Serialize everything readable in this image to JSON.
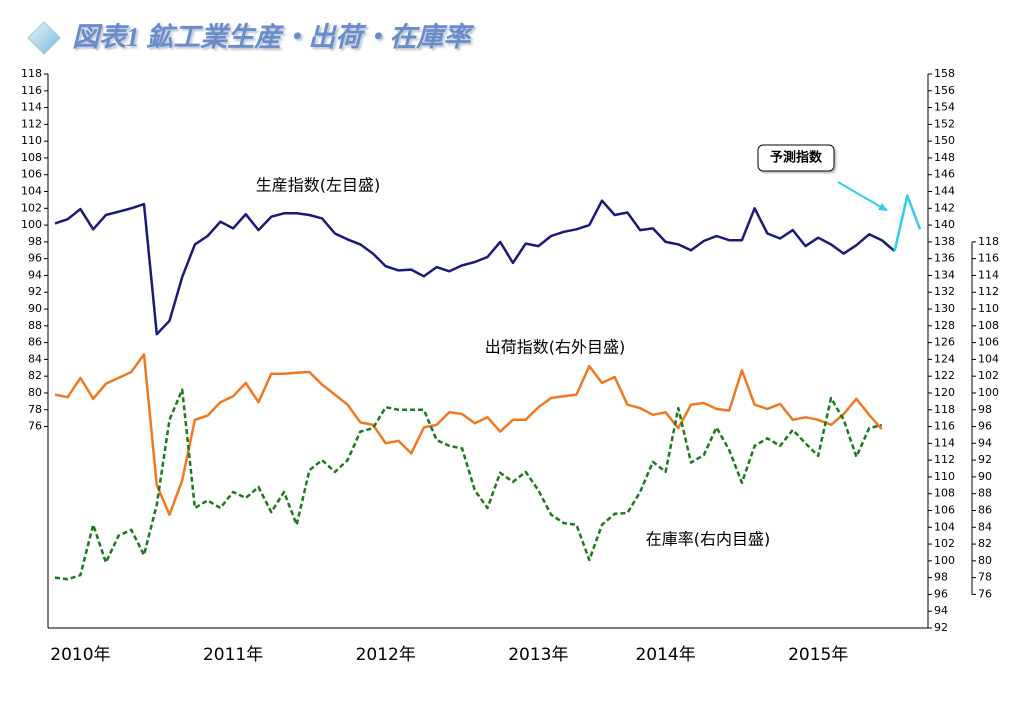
{
  "chart_data": {
    "type": "line",
    "title": "図表1 鉱工業生産・出荷・在庫率",
    "categories": [
      null,
      null,
      "2010年",
      null,
      null,
      null,
      null,
      null,
      null,
      null,
      null,
      null,
      null,
      null,
      "2011年",
      null,
      null,
      null,
      null,
      null,
      null,
      null,
      null,
      null,
      null,
      null,
      "2012年",
      null,
      null,
      null,
      null,
      null,
      null,
      null,
      null,
      null,
      null,
      null,
      "2013年",
      null,
      null,
      null,
      null,
      null,
      null,
      null,
      null,
      null,
      "2014年",
      null,
      null,
      null,
      null,
      null,
      null,
      null,
      null,
      null,
      null,
      null,
      "2015年",
      null,
      null,
      null,
      null,
      null,
      null,
      null,
      null
    ],
    "ylim": [
      52,
      118
    ],
    "yticks": [
      76,
      78,
      80,
      82,
      84,
      86,
      88,
      90,
      92,
      94,
      96,
      98,
      100,
      102,
      104,
      106,
      108,
      110,
      112,
      114,
      116,
      118
    ],
    "y2lim": [
      92,
      158
    ],
    "y2ticks": [
      92,
      94,
      96,
      98,
      100,
      102,
      104,
      106,
      108,
      110,
      112,
      114,
      116,
      118,
      120,
      122,
      124,
      126,
      128,
      130,
      132,
      134,
      136,
      138,
      140,
      142,
      144,
      146,
      148,
      150,
      152,
      154,
      156,
      158
    ],
    "y3lim": [
      72,
      138
    ],
    "y3ticks": [
      76,
      78,
      80,
      82,
      84,
      86,
      88,
      90,
      92,
      94,
      96,
      98,
      100,
      102,
      104,
      106,
      108,
      110,
      112,
      114,
      116,
      118
    ],
    "series": [
      {
        "name": "生産指数(左目盛)",
        "color": "#1a1a78",
        "axis": "y",
        "values": [
          100.2,
          100.7,
          101.9,
          99.5,
          101.2,
          101.6,
          102,
          102.5,
          87,
          88.6,
          93.8,
          97.7,
          98.7,
          100.4,
          99.6,
          101.3,
          99.4,
          101,
          101.4,
          101.4,
          101.2,
          100.8,
          99,
          98.3,
          97.7,
          96.6,
          95.1,
          94.6,
          94.7,
          93.9,
          95,
          94.5,
          95.2,
          95.6,
          96.2,
          98,
          95.5,
          97.8,
          97.5,
          98.7,
          99.2,
          99.5,
          100,
          102.9,
          101.2,
          101.5,
          99.4,
          99.6,
          98,
          97.7,
          97,
          98.1,
          98.7,
          98.2,
          98.2,
          102,
          99,
          98.4,
          99.4,
          97.5,
          98.5,
          97.7,
          96.6,
          97.6,
          98.9,
          98.2,
          96.9,
          null,
          null
        ]
      },
      {
        "name": "予測指数",
        "color": "#33ccee",
        "axis": "y",
        "values": [
          null,
          null,
          null,
          null,
          null,
          null,
          null,
          null,
          null,
          null,
          null,
          null,
          null,
          null,
          null,
          null,
          null,
          null,
          null,
          null,
          null,
          null,
          null,
          null,
          null,
          null,
          null,
          null,
          null,
          null,
          null,
          null,
          null,
          null,
          null,
          null,
          null,
          null,
          null,
          null,
          null,
          null,
          null,
          null,
          null,
          null,
          null,
          null,
          null,
          null,
          null,
          null,
          null,
          null,
          null,
          null,
          null,
          null,
          null,
          null,
          null,
          null,
          null,
          null,
          null,
          null,
          96.9,
          103.5,
          99.5
        ]
      },
      {
        "name": "出荷指数(右外目盛)",
        "color": "#f07820",
        "axis": "y2",
        "values": [
          119.8,
          119.5,
          121.8,
          119.3,
          121.1,
          121.8,
          122.5,
          124.6,
          109,
          105.5,
          109.6,
          116.8,
          117.3,
          118.9,
          119.6,
          121.2,
          118.9,
          122.3,
          122.3,
          122.4,
          122.5,
          121,
          119.8,
          118.6,
          116.5,
          116.2,
          114,
          114.3,
          112.8,
          115.9,
          116.2,
          117.7,
          117.5,
          116.4,
          117.1,
          115.4,
          116.8,
          116.8,
          118.3,
          119.4,
          119.6,
          119.8,
          123.2,
          121.2,
          121.9,
          118.6,
          118.2,
          117.4,
          117.7,
          115.8,
          118.6,
          118.8,
          118.1,
          117.9,
          122.7,
          118.6,
          118.1,
          118.7,
          116.8,
          117.1,
          116.8,
          116.2,
          117.5,
          119.3,
          117.4,
          115.7,
          null,
          null,
          null
        ]
      },
      {
        "name": "在庫率(右内目盛)",
        "color": "#1a7a1a",
        "axis": "y3",
        "dashed": true,
        "values": [
          78,
          77.8,
          78.3,
          84.3,
          79.8,
          83,
          83.7,
          80.7,
          86.7,
          96.8,
          100.4,
          86.3,
          87.2,
          86.3,
          88.2,
          87.5,
          88.8,
          85.8,
          88.2,
          84.3,
          90.8,
          92,
          90.6,
          92,
          95.4,
          95.8,
          98.3,
          98,
          98,
          98,
          94.4,
          93.7,
          93.4,
          88.4,
          86.3,
          90.5,
          89.4,
          90.6,
          88.4,
          85.5,
          84.5,
          84.3,
          80.1,
          84.3,
          85.6,
          85.7,
          88.2,
          91.8,
          90.6,
          98.2,
          91.7,
          92.6,
          95.9,
          93.2,
          89.3,
          93.7,
          94.6,
          93.7,
          95.6,
          94,
          92.5,
          99.4,
          96.8,
          92.4,
          95.8,
          96.2,
          null,
          null,
          null
        ]
      }
    ]
  }
}
